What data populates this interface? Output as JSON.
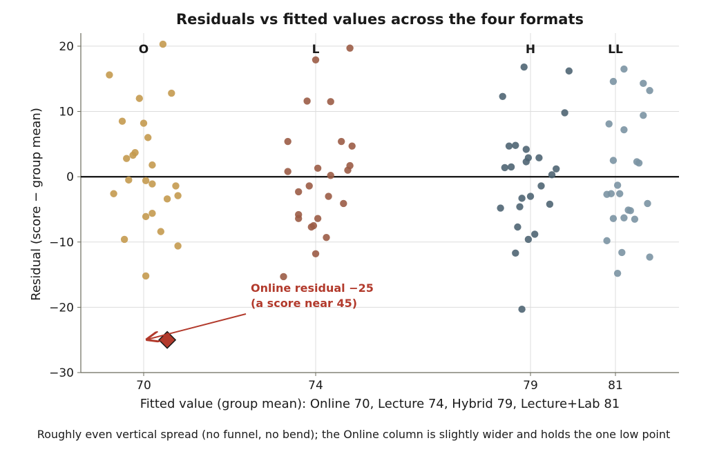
{
  "chart_data": {
    "type": "scatter",
    "title": "Residuals vs fitted values across the four formats",
    "xlabel": "Fitted value (group mean): Online 70, Lecture 74, Hybrid 79, Lecture+Lab 81",
    "ylabel": "Residual (score − group mean)",
    "caption": "Roughly even vertical spread (no funnel, no bend); the Online column is slightly wider and holds the one low point",
    "ylim": [
      -30,
      22
    ],
    "yticks": [
      -30,
      -20,
      -10,
      0,
      10,
      20
    ],
    "ytick_labels": [
      "−30",
      "−20",
      "−10",
      "0",
      "10",
      "20"
    ],
    "xticks": [
      {
        "label": "70",
        "position": 70
      },
      {
        "label": "74",
        "position": 74
      },
      {
        "label": "79",
        "position": 79
      },
      {
        "label": "81",
        "position": 81
      }
    ],
    "grid": true,
    "reference_line": {
      "y": 0
    },
    "series": [
      {
        "name": "O",
        "fitted": 70,
        "color": "#c49a4f",
        "points": [
          [
            69.2,
            15.6
          ],
          [
            69.5,
            8.5
          ],
          [
            69.9,
            12.0
          ],
          [
            70.0,
            8.2
          ],
          [
            70.1,
            6.0
          ],
          [
            70.45,
            20.3
          ],
          [
            70.65,
            12.8
          ],
          [
            69.8,
            3.7
          ],
          [
            69.6,
            2.8
          ],
          [
            70.2,
            1.8
          ],
          [
            69.75,
            3.3
          ],
          [
            69.3,
            -2.6
          ],
          [
            69.65,
            -0.5
          ],
          [
            70.05,
            -0.6
          ],
          [
            70.2,
            -1.1
          ],
          [
            70.75,
            -1.4
          ],
          [
            70.8,
            -2.9
          ],
          [
            70.55,
            -3.4
          ],
          [
            70.2,
            -5.6
          ],
          [
            70.05,
            -6.1
          ],
          [
            69.55,
            -9.6
          ],
          [
            70.4,
            -8.4
          ],
          [
            70.8,
            -10.6
          ],
          [
            70.05,
            -15.2
          ]
        ]
      },
      {
        "name": "L",
        "fitted": 74,
        "color": "#9b5c46",
        "points": [
          [
            74.8,
            19.7
          ],
          [
            74.0,
            17.9
          ],
          [
            73.8,
            11.6
          ],
          [
            74.35,
            11.5
          ],
          [
            73.35,
            5.4
          ],
          [
            74.6,
            5.4
          ],
          [
            74.85,
            4.7
          ],
          [
            73.35,
            0.8
          ],
          [
            74.05,
            1.3
          ],
          [
            74.35,
            0.2
          ],
          [
            74.8,
            1.7
          ],
          [
            74.75,
            1.0
          ],
          [
            73.85,
            -1.4
          ],
          [
            73.6,
            -2.3
          ],
          [
            74.3,
            -3.0
          ],
          [
            74.65,
            -4.1
          ],
          [
            73.6,
            -5.8
          ],
          [
            73.6,
            -6.4
          ],
          [
            74.05,
            -6.4
          ],
          [
            73.95,
            -7.5
          ],
          [
            73.9,
            -7.7
          ],
          [
            74.25,
            -9.3
          ],
          [
            74.0,
            -11.8
          ],
          [
            73.25,
            -15.3
          ]
        ]
      },
      {
        "name": "H",
        "fitted": 79,
        "color": "#4f6573",
        "points": [
          [
            78.85,
            16.8
          ],
          [
            79.9,
            16.2
          ],
          [
            78.35,
            12.3
          ],
          [
            79.8,
            9.8
          ],
          [
            78.5,
            4.7
          ],
          [
            78.65,
            4.8
          ],
          [
            78.9,
            4.2
          ],
          [
            78.95,
            2.9
          ],
          [
            79.2,
            2.9
          ],
          [
            78.4,
            1.4
          ],
          [
            78.55,
            1.5
          ],
          [
            78.9,
            2.3
          ],
          [
            79.6,
            1.2
          ],
          [
            79.5,
            0.3
          ],
          [
            79.25,
            -1.4
          ],
          [
            79.0,
            -3.0
          ],
          [
            78.8,
            -3.3
          ],
          [
            78.3,
            -4.8
          ],
          [
            78.75,
            -4.6
          ],
          [
            79.45,
            -4.2
          ],
          [
            78.7,
            -7.7
          ],
          [
            78.95,
            -9.6
          ],
          [
            78.65,
            -11.7
          ],
          [
            79.1,
            -8.8
          ],
          [
            78.8,
            -20.3
          ]
        ]
      },
      {
        "name": "LL",
        "fitted": 81,
        "color": "#7b94a3",
        "points": [
          [
            81.2,
            16.5
          ],
          [
            80.95,
            14.6
          ],
          [
            81.65,
            14.3
          ],
          [
            81.8,
            13.2
          ],
          [
            80.85,
            8.1
          ],
          [
            81.2,
            7.2
          ],
          [
            81.65,
            9.4
          ],
          [
            80.95,
            2.5
          ],
          [
            81.5,
            2.3
          ],
          [
            81.55,
            2.1
          ],
          [
            80.8,
            -2.7
          ],
          [
            81.05,
            -1.3
          ],
          [
            81.1,
            -2.6
          ],
          [
            80.9,
            -2.6
          ],
          [
            81.35,
            -5.2
          ],
          [
            81.3,
            -5.1
          ],
          [
            81.45,
            -6.5
          ],
          [
            80.95,
            -6.4
          ],
          [
            81.2,
            -6.3
          ],
          [
            80.8,
            -9.8
          ],
          [
            81.15,
            -11.6
          ],
          [
            81.05,
            -14.8
          ],
          [
            81.75,
            -4.1
          ],
          [
            81.8,
            -12.3
          ]
        ]
      }
    ],
    "highlight": {
      "fitted": 70,
      "x": 70.55,
      "y": -25,
      "color": "#b23a2c",
      "label_line1": "Online residual −25",
      "label_line2": "(a score near 45)"
    }
  }
}
